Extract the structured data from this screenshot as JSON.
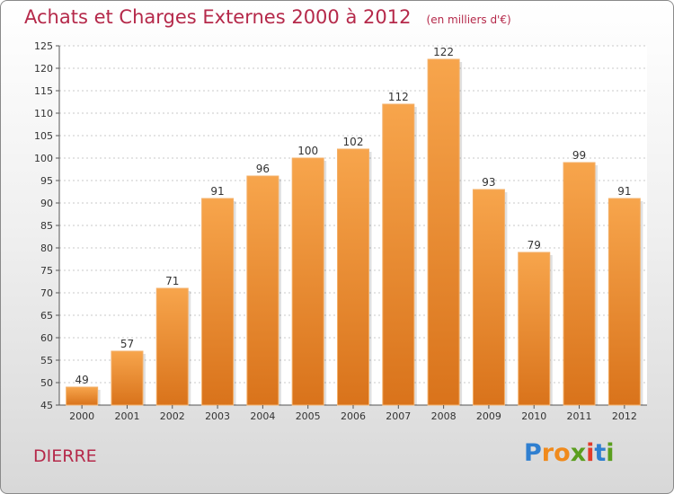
{
  "chart_data": {
    "type": "bar",
    "title": "Achats et Charges Externes 2000 à 2012",
    "subtitle": "(en milliers d'€)",
    "categories": [
      "2000",
      "2001",
      "2002",
      "2003",
      "2004",
      "2005",
      "2006",
      "2007",
      "2008",
      "2009",
      "2010",
      "2011",
      "2012"
    ],
    "values": [
      49,
      57,
      71,
      91,
      96,
      100,
      102,
      112,
      122,
      93,
      79,
      99,
      91
    ],
    "ylim": [
      45,
      125
    ],
    "yticks": [
      45,
      50,
      55,
      60,
      65,
      70,
      75,
      80,
      85,
      90,
      95,
      100,
      105,
      110,
      115,
      120,
      125
    ],
    "grid": true,
    "bar_color_top": "#f7a54c",
    "bar_color_bottom": "#d9731b"
  },
  "commune": "DIERRE",
  "brand": {
    "letters": [
      "P",
      "r",
      "o",
      "x",
      "i",
      "t",
      "i"
    ],
    "colors": [
      "#2f7fd0",
      "#f08a1c",
      "#f08a1c",
      "#5a9e1e",
      "#e23b2b",
      "#2f7fd0",
      "#5a9e1e"
    ]
  }
}
